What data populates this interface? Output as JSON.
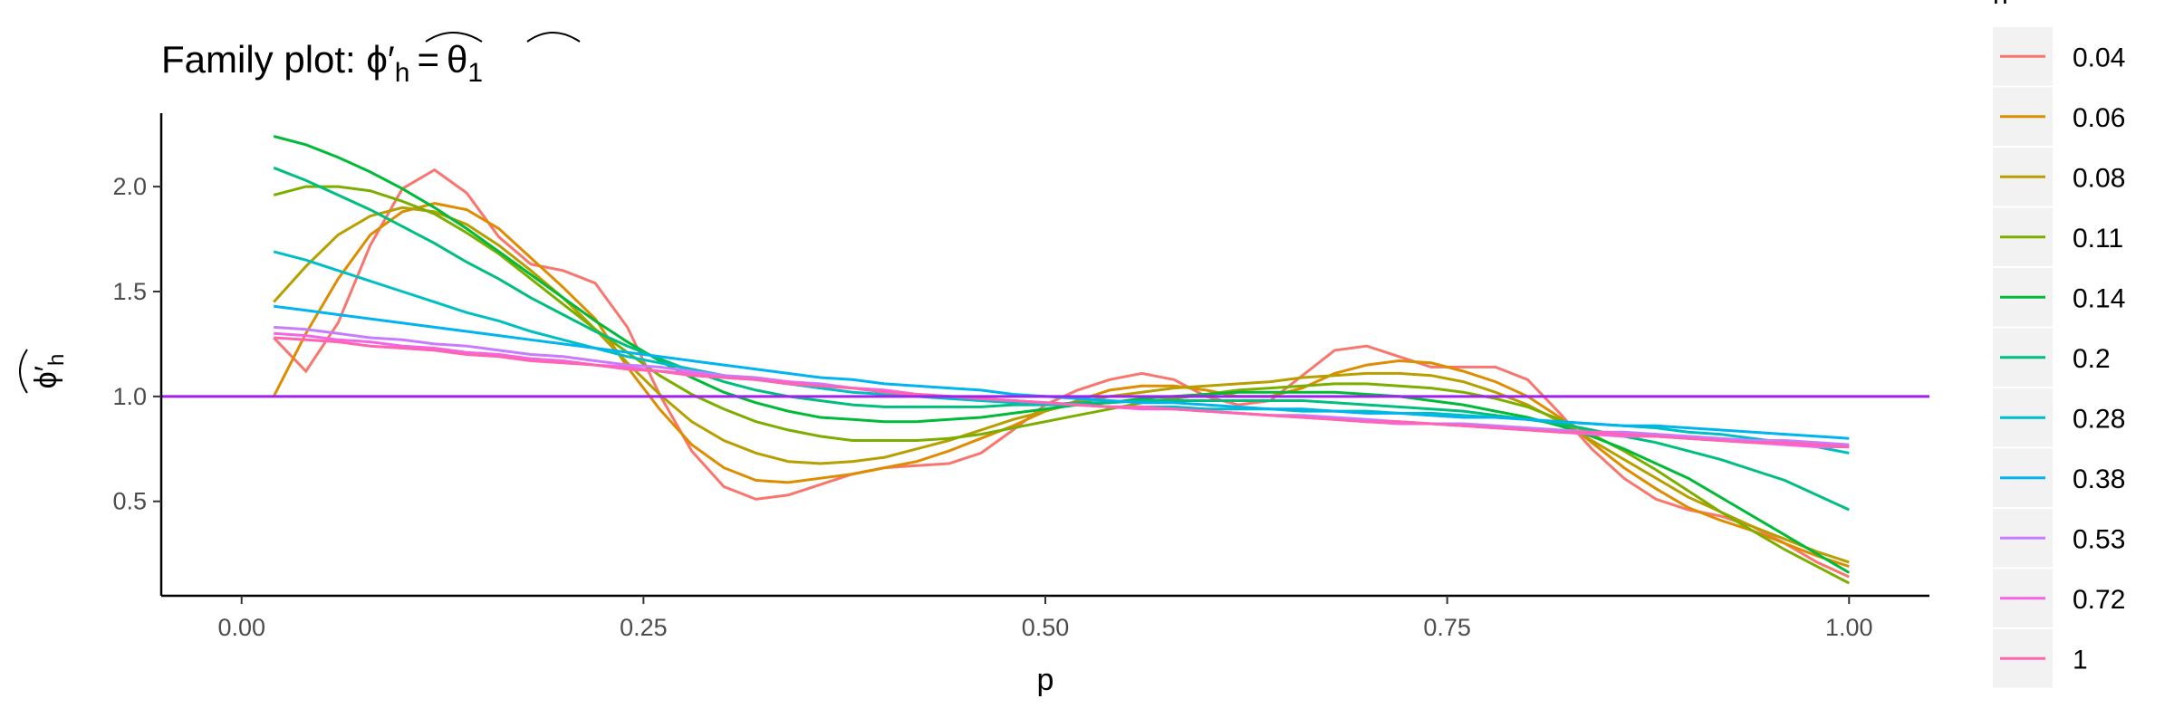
{
  "chart_data": {
    "type": "line",
    "title": {
      "prefix": "Family plot: ",
      "lhs_symbol": "ϕ",
      "lhs_prime": "′",
      "lhs_sub": "h",
      "equals": "=",
      "rhs_symbol": "θ",
      "rhs_sub": "1"
    },
    "xlabel": "p",
    "ylabel": {
      "symbol": "ϕ",
      "prime": "′",
      "sub": "h"
    },
    "xlim": [
      -0.05,
      1.05
    ],
    "ylim": [
      0.05,
      2.35
    ],
    "xticks": [
      0.0,
      0.25,
      0.5,
      0.75,
      1.0
    ],
    "xtick_labels": [
      "0.00",
      "0.25",
      "0.50",
      "0.75",
      "1.00"
    ],
    "yticks": [
      0.5,
      1.0,
      1.5,
      2.0
    ],
    "ytick_labels": [
      "0.5",
      "1.0",
      "1.5",
      "2.0"
    ],
    "grid": false,
    "legend_position": "right",
    "legend_title": "h",
    "x": [
      0.02,
      0.04,
      0.06,
      0.08,
      0.1,
      0.12,
      0.14,
      0.16,
      0.18,
      0.2,
      0.22,
      0.24,
      0.26,
      0.28,
      0.3,
      0.32,
      0.34,
      0.36,
      0.38,
      0.4,
      0.42,
      0.44,
      0.46,
      0.48,
      0.5,
      0.52,
      0.54,
      0.56,
      0.58,
      0.6,
      0.62,
      0.64,
      0.66,
      0.68,
      0.7,
      0.72,
      0.74,
      0.76,
      0.78,
      0.8,
      0.82,
      0.84,
      0.86,
      0.88,
      0.9,
      0.92,
      0.94,
      0.96,
      0.98,
      1.0
    ],
    "series": [
      {
        "name": "0.04",
        "color": "#F8766D",
        "values": [
          1.28,
          1.12,
          1.35,
          1.72,
          1.99,
          2.08,
          1.97,
          1.76,
          1.63,
          1.6,
          1.54,
          1.33,
          1.01,
          0.74,
          0.57,
          0.51,
          0.53,
          0.58,
          0.63,
          0.66,
          0.67,
          0.68,
          0.73,
          0.84,
          0.96,
          1.03,
          1.08,
          1.11,
          1.08,
          1.0,
          0.96,
          0.98,
          1.1,
          1.22,
          1.24,
          1.19,
          1.14,
          1.14,
          1.14,
          1.08,
          0.92,
          0.75,
          0.61,
          0.51,
          0.46,
          0.43,
          0.38,
          0.3,
          0.21,
          0.14
        ]
      },
      {
        "name": "0.06",
        "color": "#DE8C00",
        "values": [
          1.0,
          1.3,
          1.56,
          1.77,
          1.88,
          1.92,
          1.89,
          1.8,
          1.66,
          1.52,
          1.37,
          1.14,
          0.94,
          0.77,
          0.66,
          0.6,
          0.59,
          0.61,
          0.63,
          0.66,
          0.69,
          0.74,
          0.8,
          0.86,
          0.93,
          0.98,
          1.03,
          1.05,
          1.05,
          1.03,
          1.0,
          1.0,
          1.04,
          1.11,
          1.15,
          1.17,
          1.16,
          1.12,
          1.07,
          1.0,
          0.9,
          0.78,
          0.66,
          0.56,
          0.47,
          0.41,
          0.36,
          0.3,
          0.24,
          0.19
        ]
      },
      {
        "name": "0.08",
        "color": "#B79F00",
        "values": [
          1.45,
          1.62,
          1.77,
          1.86,
          1.9,
          1.88,
          1.82,
          1.72,
          1.6,
          1.47,
          1.32,
          1.16,
          1.01,
          0.88,
          0.79,
          0.73,
          0.69,
          0.68,
          0.69,
          0.71,
          0.75,
          0.79,
          0.84,
          0.89,
          0.93,
          0.97,
          1.0,
          1.02,
          1.04,
          1.05,
          1.06,
          1.07,
          1.09,
          1.1,
          1.11,
          1.11,
          1.1,
          1.07,
          1.02,
          0.96,
          0.88,
          0.79,
          0.7,
          0.61,
          0.52,
          0.45,
          0.38,
          0.32,
          0.26,
          0.21
        ]
      },
      {
        "name": "0.11",
        "color": "#7CAE00",
        "values": [
          1.96,
          2.0,
          2.0,
          1.98,
          1.93,
          1.87,
          1.78,
          1.68,
          1.56,
          1.44,
          1.32,
          1.21,
          1.1,
          1.01,
          0.94,
          0.88,
          0.84,
          0.81,
          0.79,
          0.79,
          0.79,
          0.8,
          0.82,
          0.85,
          0.88,
          0.91,
          0.94,
          0.97,
          0.99,
          1.01,
          1.03,
          1.04,
          1.05,
          1.06,
          1.06,
          1.05,
          1.04,
          1.02,
          0.99,
          0.95,
          0.89,
          0.82,
          0.74,
          0.65,
          0.55,
          0.45,
          0.36,
          0.27,
          0.19,
          0.11
        ]
      },
      {
        "name": "0.14",
        "color": "#00BA38",
        "values": [
          2.24,
          2.2,
          2.14,
          2.07,
          1.99,
          1.9,
          1.8,
          1.69,
          1.58,
          1.47,
          1.36,
          1.26,
          1.17,
          1.09,
          1.02,
          0.97,
          0.93,
          0.9,
          0.89,
          0.88,
          0.88,
          0.89,
          0.9,
          0.92,
          0.94,
          0.96,
          0.97,
          0.99,
          1.0,
          1.01,
          1.02,
          1.02,
          1.02,
          1.02,
          1.01,
          1.0,
          0.98,
          0.96,
          0.93,
          0.9,
          0.86,
          0.81,
          0.75,
          0.68,
          0.61,
          0.52,
          0.43,
          0.34,
          0.25,
          0.16
        ]
      },
      {
        "name": "0.2",
        "color": "#00BF7D",
        "values": [
          2.09,
          2.03,
          1.96,
          1.89,
          1.81,
          1.73,
          1.64,
          1.56,
          1.47,
          1.39,
          1.31,
          1.24,
          1.18,
          1.12,
          1.07,
          1.03,
          1.0,
          0.98,
          0.96,
          0.95,
          0.95,
          0.95,
          0.95,
          0.96,
          0.96,
          0.97,
          0.97,
          0.98,
          0.98,
          0.98,
          0.98,
          0.98,
          0.98,
          0.97,
          0.96,
          0.95,
          0.94,
          0.93,
          0.91,
          0.89,
          0.87,
          0.84,
          0.81,
          0.78,
          0.74,
          0.7,
          0.65,
          0.6,
          0.53,
          0.46
        ]
      },
      {
        "name": "0.28",
        "color": "#00BFC4",
        "values": [
          1.69,
          1.65,
          1.6,
          1.55,
          1.5,
          1.45,
          1.4,
          1.36,
          1.31,
          1.27,
          1.23,
          1.19,
          1.16,
          1.13,
          1.1,
          1.08,
          1.06,
          1.04,
          1.02,
          1.01,
          1.0,
          0.99,
          0.98,
          0.97,
          0.96,
          0.96,
          0.95,
          0.95,
          0.95,
          0.94,
          0.94,
          0.94,
          0.93,
          0.93,
          0.93,
          0.92,
          0.92,
          0.91,
          0.9,
          0.89,
          0.88,
          0.87,
          0.86,
          0.85,
          0.83,
          0.82,
          0.8,
          0.78,
          0.76,
          0.73
        ]
      },
      {
        "name": "0.38",
        "color": "#00B4F0",
        "values": [
          1.43,
          1.41,
          1.39,
          1.37,
          1.35,
          1.33,
          1.31,
          1.29,
          1.27,
          1.25,
          1.23,
          1.21,
          1.19,
          1.17,
          1.15,
          1.13,
          1.11,
          1.09,
          1.08,
          1.06,
          1.05,
          1.04,
          1.03,
          1.01,
          1.0,
          0.99,
          0.98,
          0.97,
          0.97,
          0.96,
          0.95,
          0.94,
          0.94,
          0.93,
          0.92,
          0.92,
          0.91,
          0.9,
          0.9,
          0.89,
          0.88,
          0.87,
          0.86,
          0.86,
          0.85,
          0.84,
          0.83,
          0.82,
          0.81,
          0.8
        ]
      },
      {
        "name": "0.53",
        "color": "#C77CFF",
        "values": [
          1.33,
          1.32,
          1.3,
          1.28,
          1.27,
          1.25,
          1.24,
          1.22,
          1.2,
          1.19,
          1.17,
          1.15,
          1.14,
          1.12,
          1.1,
          1.09,
          1.07,
          1.06,
          1.04,
          1.03,
          1.01,
          1.0,
          0.99,
          0.98,
          0.97,
          0.96,
          0.95,
          0.95,
          0.94,
          0.93,
          0.92,
          0.91,
          0.91,
          0.9,
          0.89,
          0.88,
          0.87,
          0.87,
          0.86,
          0.85,
          0.84,
          0.83,
          0.83,
          0.82,
          0.81,
          0.8,
          0.79,
          0.79,
          0.78,
          0.77
        ]
      },
      {
        "name": "0.72",
        "color": "#F564E3",
        "values": [
          1.3,
          1.29,
          1.27,
          1.26,
          1.24,
          1.23,
          1.21,
          1.2,
          1.18,
          1.17,
          1.15,
          1.14,
          1.12,
          1.11,
          1.09,
          1.08,
          1.07,
          1.05,
          1.04,
          1.03,
          1.01,
          1.0,
          0.99,
          0.98,
          0.97,
          0.96,
          0.95,
          0.94,
          0.94,
          0.93,
          0.92,
          0.91,
          0.9,
          0.89,
          0.88,
          0.87,
          0.87,
          0.86,
          0.85,
          0.84,
          0.83,
          0.82,
          0.81,
          0.81,
          0.8,
          0.79,
          0.78,
          0.77,
          0.76,
          0.76
        ]
      },
      {
        "name": "1",
        "color": "#FF64B0",
        "values": [
          1.28,
          1.27,
          1.26,
          1.24,
          1.23,
          1.22,
          1.2,
          1.19,
          1.17,
          1.16,
          1.15,
          1.13,
          1.12,
          1.1,
          1.09,
          1.08,
          1.06,
          1.05,
          1.04,
          1.02,
          1.01,
          1.0,
          0.99,
          0.98,
          0.97,
          0.96,
          0.95,
          0.95,
          0.94,
          0.93,
          0.92,
          0.91,
          0.9,
          0.89,
          0.88,
          0.88,
          0.87,
          0.86,
          0.85,
          0.84,
          0.83,
          0.83,
          0.82,
          0.81,
          0.8,
          0.79,
          0.78,
          0.78,
          0.77,
          0.76
        ]
      }
    ],
    "reference_line": {
      "y": 1.0,
      "color": "#A020F0"
    }
  }
}
